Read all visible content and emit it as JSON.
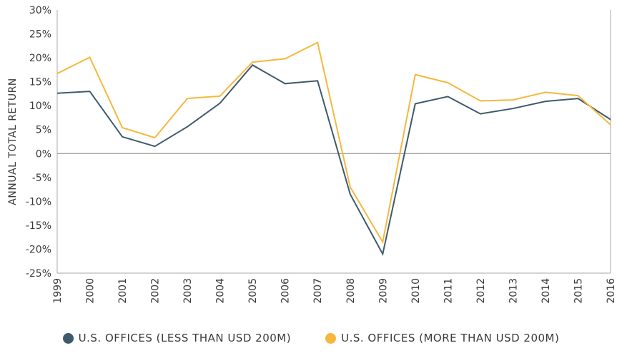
{
  "chart_data": {
    "type": "line",
    "title": "",
    "xlabel": "",
    "ylabel": "ANNUAL TOTAL RETURN",
    "categories": [
      "1999",
      "2000",
      "2001",
      "2002",
      "2003",
      "2004",
      "2005",
      "2006",
      "2007",
      "2008",
      "2009",
      "2010",
      "2011",
      "2012",
      "2013",
      "2014",
      "2015",
      "2016"
    ],
    "y_ticks": [
      "30%",
      "25%",
      "20%",
      "15%",
      "10%",
      "5%",
      "0%",
      "-5%",
      "-10%",
      "-15%",
      "-20%",
      "-25%"
    ],
    "ylim": [
      -25,
      30
    ],
    "grid": false,
    "zero_line": true,
    "legend_position": "bottom",
    "series": [
      {
        "name": "U.S. OFFICES (LESS THAN USD 200M)",
        "color": "#3d5a6c",
        "values": [
          12.6,
          13.0,
          3.5,
          1.5,
          5.6,
          10.5,
          18.5,
          14.6,
          15.2,
          -8.5,
          -21.0,
          10.4,
          11.9,
          8.3,
          9.4,
          10.9,
          11.5,
          7.1
        ]
      },
      {
        "name": "U.S. OFFICES (MORE THAN USD 200M)",
        "color": "#f5b83d",
        "values": [
          16.7,
          20.1,
          5.4,
          3.3,
          11.5,
          12.0,
          19.1,
          19.8,
          23.2,
          -7.0,
          -18.5,
          16.5,
          14.8,
          11.0,
          11.2,
          12.8,
          12.1,
          6.0
        ]
      }
    ]
  }
}
